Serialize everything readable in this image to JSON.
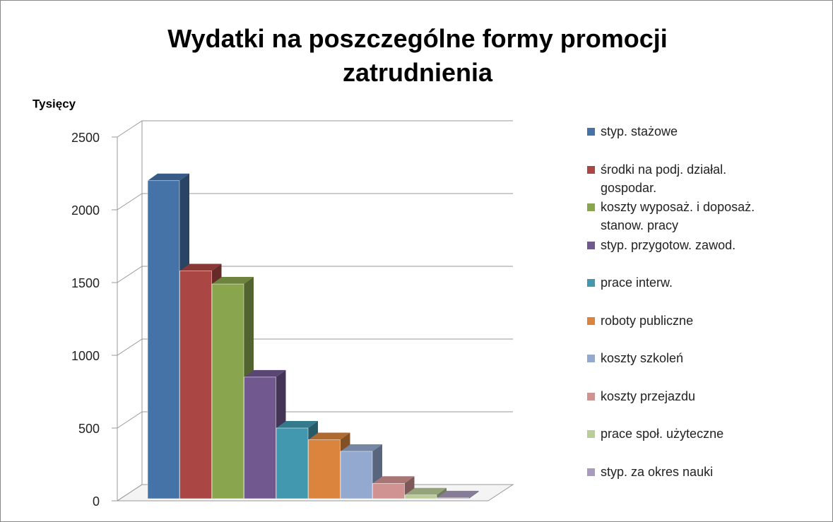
{
  "chart_data": {
    "type": "bar3d",
    "title": "Wydatki na poszczególne formy promocji zatrudnienia",
    "y_axis_label": "Tysięcy",
    "categories": [
      "styp. stażowe",
      "środki na podj. działal. gospodar.",
      "koszty wyposaż. i doposaż. stanow. pracy",
      "styp. przygotow. zawod.",
      "prace interw.",
      "roboty publiczne",
      "koszty szkoleń",
      "koszty przejazdu",
      "prace społ. użyteczne",
      "styp. za okres nauki"
    ],
    "values": [
      2200,
      1580,
      1490,
      850,
      500,
      420,
      340,
      120,
      40,
      20
    ],
    "colors": [
      "#4572a7",
      "#aa4643",
      "#89a54e",
      "#71588f",
      "#4198af",
      "#db843d",
      "#93a9cf",
      "#d19392",
      "#b9cd96",
      "#a99bbd"
    ],
    "ylim": [
      0,
      2500
    ],
    "yticks": [
      0,
      500,
      1000,
      1500,
      2000,
      2500
    ],
    "grid": true,
    "legend": "right"
  }
}
